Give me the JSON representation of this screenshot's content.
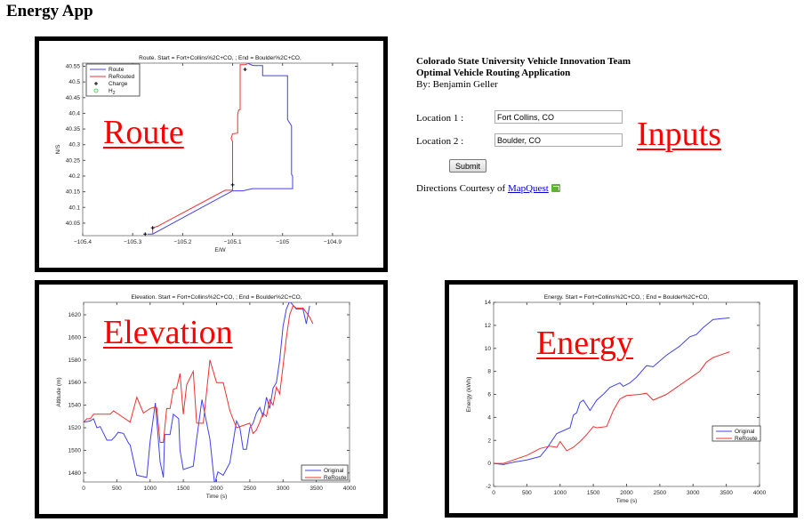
{
  "app": {
    "title": "Energy App"
  },
  "overlays": {
    "route": "Route",
    "elevation": "Elevation",
    "energy": "Energy",
    "inputs": "Inputs"
  },
  "info": {
    "line1": "Colorado State University Vehicle Innovation Team",
    "line2": "Optimal Vehicle Routing Application",
    "line3": "By: Benjamin Geller"
  },
  "form": {
    "location1_label": "Location 1 :",
    "location1_value": "Fort Collins, CO",
    "location2_label": "Location 2 :",
    "location2_value": "Boulder, CO",
    "submit_label": "Submit"
  },
  "credit": {
    "prefix": "Directions Courtesy of ",
    "link": "MapQuest",
    "icon": "mapquest-icon"
  },
  "colors": {
    "original": "#4040f0",
    "reroute": "#f03030",
    "overlay": "#ff0000"
  },
  "chart_data": [
    {
      "id": "route",
      "type": "line",
      "title": "Route. Start = Fort+Collins%2C+CO, ; End = Boulder%2C+CO,",
      "xlabel": "E/W",
      "ylabel": "N/S",
      "xlim": [
        -105.4,
        -104.85
      ],
      "ylim": [
        40.01,
        40.56
      ],
      "xticks": [
        -105.4,
        -105.3,
        -105.2,
        -105.1,
        -105,
        -104.9
      ],
      "xtick_labels": [
        "−105.4",
        "−105.3",
        "−105.2",
        "−105.1",
        "−105",
        "−104.9"
      ],
      "yticks": [
        40.05,
        40.1,
        40.15,
        40.2,
        40.25,
        40.3,
        40.35,
        40.4,
        40.45,
        40.5,
        40.55
      ],
      "ytick_labels": [
        "40.05",
        "40.1",
        "40.15",
        "40.2",
        "40.25",
        "40.3",
        "40.35",
        "40.4",
        "40.45",
        "40.5",
        "40.55"
      ],
      "legend": {
        "position": "top-left",
        "entries": [
          "Route",
          "ReRouted",
          "Charge",
          "H2"
        ]
      },
      "series": [
        {
          "name": "Route",
          "color": "#4040f0",
          "x": [
            -105.27,
            -105.26,
            -105.1,
            -105.08,
            -105.06,
            -104.98,
            -104.98,
            -104.982,
            -104.982,
            -104.99,
            -104.99,
            -104.99,
            -105.04,
            -105.04,
            -105.055,
            -105.06,
            -105.07
          ],
          "y": [
            40.015,
            40.015,
            40.153,
            40.153,
            40.16,
            40.16,
            40.2,
            40.205,
            40.36,
            40.38,
            40.52,
            40.52,
            40.52,
            40.552,
            40.552,
            40.553,
            40.56
          ]
        },
        {
          "name": "ReRouted",
          "color": "#f03030",
          "x": [
            -105.26,
            -105.26,
            -105.25,
            -105.115,
            -105.1,
            -105.1,
            -105.103,
            -105.1,
            -105.09,
            -105.09,
            -105.088,
            -105.085,
            -105.085,
            -105.075,
            -105.07
          ],
          "y": [
            40.015,
            40.035,
            40.04,
            40.155,
            40.155,
            40.31,
            40.32,
            40.335,
            40.337,
            40.395,
            40.41,
            40.412,
            40.555,
            40.555,
            40.558
          ]
        }
      ],
      "markers": {
        "charge": {
          "x": [
            -105.275,
            -105.26,
            -105.1,
            -105.075
          ],
          "y": [
            40.015,
            40.035,
            40.172,
            40.54
          ]
        }
      }
    },
    {
      "id": "elevation",
      "type": "line",
      "title": "Elevation. Start = Fort+Collins%2C+CO, ; End = Boulder%2C+CO,",
      "xlabel": "Time (s)",
      "ylabel": "Altitude (m)",
      "xlim": [
        0,
        4000
      ],
      "ylim": [
        1472,
        1631
      ],
      "xticks": [
        0,
        500,
        1000,
        1500,
        2000,
        2500,
        3000,
        3500,
        4000
      ],
      "yticks": [
        1480,
        1500,
        1520,
        1540,
        1560,
        1580,
        1600,
        1620
      ],
      "legend": {
        "position": "bottom-right",
        "entries": [
          "Original",
          "ReRoute"
        ]
      },
      "series": [
        {
          "name": "Original",
          "color": "#4040f0",
          "x": [
            0,
            100,
            150,
            200,
            250,
            350,
            420,
            470,
            520,
            600,
            680,
            700,
            800,
            950,
            1000,
            1080,
            1150,
            1200,
            1220,
            1300,
            1350,
            1430,
            1450,
            1500,
            1650,
            1700,
            1780,
            1900,
            1970,
            2020,
            2100,
            2200,
            2300,
            2350,
            2400,
            2450,
            2500,
            2550,
            2600,
            2650,
            2700,
            2750,
            2800,
            2850,
            2900,
            2950,
            3000,
            3050,
            3100,
            3200,
            3300,
            3350,
            3400
          ],
          "y": [
            1525,
            1526,
            1528,
            1520,
            1521,
            1509,
            1509,
            1512,
            1516,
            1515,
            1506,
            1505,
            1478,
            1476,
            1508,
            1542,
            1490,
            1476,
            1514,
            1514,
            1532,
            1528,
            1500,
            1483,
            1486,
            1510,
            1545,
            1510,
            1470,
            1481,
            1478,
            1489,
            1526,
            1520,
            1501,
            1501,
            1520,
            1524,
            1533,
            1538,
            1530,
            1547,
            1537,
            1555,
            1560,
            1580,
            1610,
            1625,
            1632,
            1625,
            1625,
            1612,
            1628
          ]
        },
        {
          "name": "ReRoute",
          "color": "#f03030",
          "x": [
            0,
            50,
            100,
            150,
            200,
            400,
            450,
            700,
            800,
            900,
            950,
            1000,
            1050,
            1100,
            1150,
            1200,
            1250,
            1300,
            1350,
            1400,
            1450,
            1500,
            1550,
            1650,
            1700,
            1800,
            1900,
            2000,
            2100,
            2200,
            2300,
            2400,
            2500,
            2550,
            2600,
            2650,
            2700,
            2750,
            2800,
            2850,
            2900,
            2950,
            3000,
            3050,
            3100,
            3150,
            3200,
            3300,
            3400,
            3450
          ],
          "y": [
            1525,
            1528,
            1528,
            1532,
            1532,
            1532,
            1535,
            1525,
            1547,
            1533,
            1535,
            1537,
            1538,
            1538,
            1507,
            1507,
            1537,
            1537,
            1554,
            1555,
            1568,
            1532,
            1558,
            1570,
            1524,
            1524,
            1580,
            1560,
            1560,
            1535,
            1520,
            1522,
            1524,
            1515,
            1518,
            1525,
            1533,
            1530,
            1545,
            1540,
            1556,
            1550,
            1575,
            1600,
            1620,
            1628,
            1626,
            1626,
            1618,
            1612
          ]
        }
      ]
    },
    {
      "id": "energy",
      "type": "line",
      "title": "Energy. Start = Fort+Collins%2C+CO, ; End = Boulder%2C+CO,",
      "xlabel": "Time (s)",
      "ylabel": "Energy (kWh)",
      "xlim": [
        0,
        4000
      ],
      "ylim": [
        -2,
        14
      ],
      "xticks": [
        0,
        500,
        1000,
        1500,
        2000,
        2500,
        3000,
        3500,
        4000
      ],
      "yticks": [
        -2,
        0,
        2,
        4,
        6,
        8,
        10,
        12,
        14
      ],
      "legend": {
        "position": "right",
        "entries": [
          "Original",
          "ReRoute"
        ]
      },
      "series": [
        {
          "name": "Original",
          "color": "#4040f0",
          "x": [
            0,
            150,
            300,
            500,
            700,
            800,
            950,
            1150,
            1200,
            1250,
            1300,
            1350,
            1450,
            1550,
            1650,
            1750,
            1900,
            1950,
            2050,
            2150,
            2300,
            2400,
            2600,
            2800,
            2950,
            3050,
            3150,
            3300,
            3450,
            3550
          ],
          "y": [
            0,
            -0.1,
            0.1,
            0.3,
            0.6,
            1.3,
            2.6,
            3.1,
            4.2,
            4.4,
            5.3,
            5.5,
            4.6,
            5.5,
            6.0,
            6.6,
            7.0,
            6.7,
            7.0,
            7.5,
            8.5,
            8.4,
            9.4,
            10.2,
            11.0,
            11.2,
            11.8,
            12.5,
            12.6,
            12.65
          ]
        },
        {
          "name": "ReRoute",
          "color": "#f03030",
          "x": [
            0,
            150,
            300,
            500,
            700,
            850,
            950,
            1000,
            1100,
            1200,
            1300,
            1400,
            1500,
            1550,
            1700,
            1800,
            1900,
            2000,
            2200,
            2300,
            2400,
            2600,
            2800,
            3000,
            3100,
            3200,
            3300,
            3450,
            3550
          ],
          "y": [
            0,
            0,
            0.3,
            0.7,
            1.3,
            1.5,
            1.4,
            1.9,
            1.1,
            1.4,
            1.9,
            2.5,
            3.2,
            3.1,
            3.2,
            4.6,
            5.6,
            5.9,
            6.0,
            6.1,
            5.5,
            6.0,
            6.8,
            7.6,
            8.0,
            8.8,
            9.2,
            9.5,
            9.7
          ]
        }
      ]
    }
  ]
}
